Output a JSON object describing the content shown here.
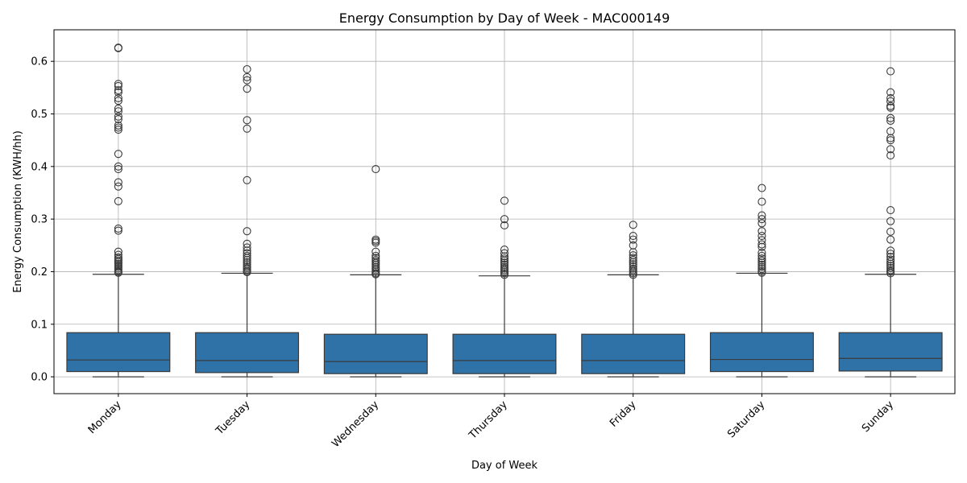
{
  "chart_data": {
    "type": "box",
    "title": "Energy Consumption by Day of Week - MAC000149",
    "xlabel": "Day of Week",
    "ylabel": "Energy Consumption (KWH/hh)",
    "ylim": [
      -0.032,
      0.66
    ],
    "yticks": [
      0.0,
      0.1,
      0.2,
      0.3,
      0.4,
      0.5,
      0.6
    ],
    "ytick_labels": [
      "0.0",
      "0.1",
      "0.2",
      "0.3",
      "0.4",
      "0.5",
      "0.6"
    ],
    "grid": true,
    "box_color": "#2f72a8",
    "categories": [
      "Monday",
      "Tuesday",
      "Wednesday",
      "Thursday",
      "Friday",
      "Saturday",
      "Sunday"
    ],
    "boxes": [
      {
        "whislo": 0.0,
        "q1": 0.01,
        "median": 0.032,
        "q3": 0.084,
        "whishi": 0.195,
        "fliers": [
          0.626,
          0.625,
          0.557,
          0.553,
          0.545,
          0.541,
          0.53,
          0.525,
          0.51,
          0.505,
          0.495,
          0.49,
          0.478,
          0.474,
          0.47,
          0.424,
          0.4,
          0.395,
          0.37,
          0.362,
          0.334,
          0.282,
          0.278,
          0.238,
          0.232,
          0.227,
          0.224,
          0.221,
          0.218,
          0.215,
          0.212,
          0.209,
          0.206,
          0.203,
          0.2,
          0.198
        ]
      },
      {
        "whislo": 0.0,
        "q1": 0.008,
        "median": 0.031,
        "q3": 0.084,
        "whishi": 0.197,
        "fliers": [
          0.585,
          0.57,
          0.564,
          0.548,
          0.488,
          0.472,
          0.374,
          0.277,
          0.253,
          0.246,
          0.24,
          0.235,
          0.23,
          0.226,
          0.222,
          0.218,
          0.214,
          0.21,
          0.207,
          0.204,
          0.201,
          0.199
        ]
      },
      {
        "whislo": 0.0,
        "q1": 0.006,
        "median": 0.029,
        "q3": 0.081,
        "whishi": 0.194,
        "fliers": [
          0.395,
          0.261,
          0.258,
          0.255,
          0.238,
          0.23,
          0.226,
          0.222,
          0.219,
          0.216,
          0.213,
          0.209,
          0.206,
          0.203,
          0.2,
          0.197,
          0.195
        ]
      },
      {
        "whislo": 0.0,
        "q1": 0.006,
        "median": 0.031,
        "q3": 0.081,
        "whishi": 0.192,
        "fliers": [
          0.335,
          0.3,
          0.288,
          0.242,
          0.235,
          0.229,
          0.225,
          0.221,
          0.217,
          0.213,
          0.209,
          0.206,
          0.203,
          0.2,
          0.197,
          0.194
        ]
      },
      {
        "whislo": 0.0,
        "q1": 0.006,
        "median": 0.031,
        "q3": 0.081,
        "whishi": 0.194,
        "fliers": [
          0.289,
          0.268,
          0.261,
          0.25,
          0.237,
          0.231,
          0.226,
          0.222,
          0.218,
          0.214,
          0.21,
          0.206,
          0.203,
          0.2,
          0.197,
          0.194
        ]
      },
      {
        "whislo": 0.0,
        "q1": 0.01,
        "median": 0.033,
        "q3": 0.084,
        "whishi": 0.197,
        "fliers": [
          0.359,
          0.333,
          0.307,
          0.3,
          0.292,
          0.277,
          0.268,
          0.26,
          0.252,
          0.247,
          0.236,
          0.23,
          0.225,
          0.221,
          0.217,
          0.213,
          0.209,
          0.205,
          0.201,
          0.198
        ]
      },
      {
        "whislo": 0.0,
        "q1": 0.011,
        "median": 0.035,
        "q3": 0.084,
        "whishi": 0.195,
        "fliers": [
          0.581,
          0.541,
          0.53,
          0.524,
          0.515,
          0.512,
          0.492,
          0.487,
          0.467,
          0.454,
          0.45,
          0.433,
          0.421,
          0.317,
          0.296,
          0.276,
          0.261,
          0.24,
          0.234,
          0.228,
          0.223,
          0.219,
          0.215,
          0.211,
          0.207,
          0.203,
          0.2,
          0.197
        ]
      }
    ]
  }
}
